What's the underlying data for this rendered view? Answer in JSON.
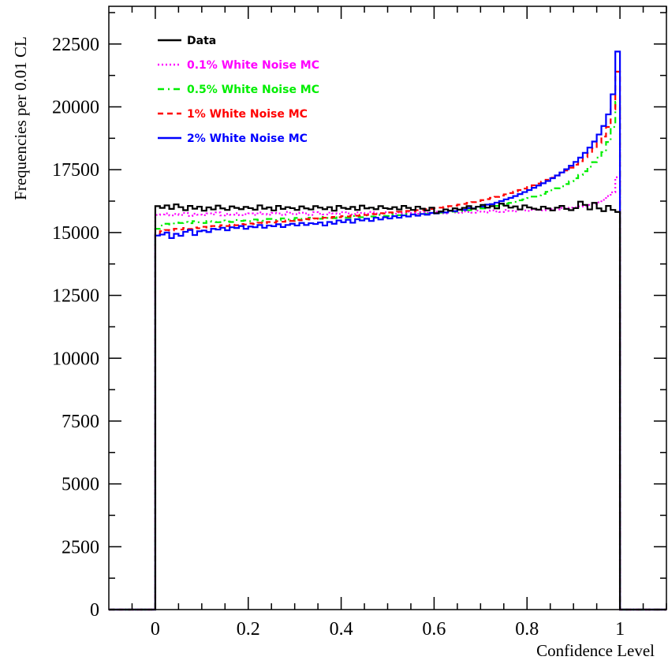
{
  "chart_data": {
    "type": "line",
    "title": "",
    "xlabel": "Confidence Level",
    "ylabel": "Frequencies per 0.01 CL",
    "xlim": [
      -0.1,
      1.1
    ],
    "ylim": [
      0,
      24000
    ],
    "x_ticks": [
      0,
      0.2,
      0.4,
      0.6,
      0.8,
      1
    ],
    "x_tick_labels": [
      "0",
      "0.2",
      "0.4",
      "0.6",
      "0.8",
      "1"
    ],
    "y_ticks": [
      0,
      2500,
      5000,
      7500,
      10000,
      12500,
      15000,
      17500,
      20000,
      22500
    ],
    "y_tick_labels": [
      "0",
      "2500",
      "5000",
      "7500",
      "10000",
      "12500",
      "15000",
      "17500",
      "20000",
      "22500"
    ],
    "bin_width": 0.01,
    "x_range": [
      0,
      1
    ],
    "legend_position": "top-left",
    "grid": false,
    "series": [
      {
        "name": "Data",
        "color": "#000000",
        "style": "solid",
        "values": [
          16050,
          15980,
          16080,
          15940,
          16120,
          16010,
          15890,
          16060,
          15950,
          16030,
          15870,
          16000,
          15920,
          16070,
          15960,
          15900,
          16040,
          15980,
          15930,
          16020,
          15970,
          15910,
          16080,
          15950,
          16000,
          15880,
          16060,
          15940,
          16010,
          15970,
          15900,
          16040,
          15960,
          15920,
          16050,
          15990,
          15930,
          16010,
          15870,
          16060,
          15980,
          15940,
          16020,
          15900,
          16070,
          15960,
          15990,
          15930,
          16050,
          15970,
          15940,
          16010,
          15920,
          16060,
          15980,
          15900,
          16030,
          15950,
          15880,
          15990,
          15770,
          15840,
          15920,
          15870,
          15960,
          15910,
          15980,
          16050,
          15950,
          16030,
          16100,
          15990,
          16050,
          15960,
          16150,
          16070,
          15990,
          16040,
          15920,
          16080,
          16000,
          15950,
          15910,
          16030,
          15960,
          15880,
          15990,
          16060,
          15940,
          15890,
          15970,
          16230,
          16100,
          15920,
          16180,
          15960,
          15850,
          16060,
          15900,
          15820
        ]
      },
      {
        "name": "0.1% White Noise MC",
        "color": "#ff00ff",
        "style": "dotted",
        "values": [
          15700,
          15720,
          15760,
          15680,
          15740,
          15700,
          15780,
          15660,
          15750,
          15710,
          15690,
          15760,
          15720,
          15800,
          15680,
          15740,
          15710,
          15770,
          15690,
          15730,
          15760,
          15700,
          15800,
          15740,
          15710,
          15780,
          15760,
          15700,
          15820,
          15740,
          15730,
          15790,
          15760,
          15700,
          15810,
          15750,
          15720,
          15790,
          15760,
          15740,
          15810,
          15760,
          15720,
          15800,
          15780,
          15750,
          15820,
          15760,
          15730,
          15810,
          15790,
          15750,
          15800,
          15770,
          15830,
          15780,
          15750,
          15820,
          15790,
          15760,
          15830,
          15790,
          15760,
          15850,
          15800,
          15780,
          15840,
          15820,
          15790,
          15870,
          15830,
          15800,
          15880,
          15840,
          15820,
          15900,
          15860,
          15840,
          15910,
          15880,
          15860,
          15920,
          15900,
          15880,
          15950,
          15930,
          15920,
          15980,
          15960,
          15990,
          16000,
          16040,
          16060,
          16100,
          16140,
          16200,
          16300,
          16450,
          16600,
          17200
        ]
      },
      {
        "name": "0.5% White Noise MC",
        "color": "#00ee00",
        "style": "dashdot",
        "values": [
          15150,
          15280,
          15350,
          15320,
          15400,
          15380,
          15420,
          15370,
          15450,
          15410,
          15380,
          15460,
          15430,
          15410,
          15480,
          15440,
          15420,
          15500,
          15460,
          15480,
          15450,
          15520,
          15490,
          15470,
          15540,
          15500,
          15490,
          15560,
          15520,
          15510,
          15580,
          15540,
          15530,
          15590,
          15560,
          15550,
          15620,
          15580,
          15570,
          15640,
          15600,
          15590,
          15660,
          15620,
          15610,
          15680,
          15640,
          15630,
          15700,
          15660,
          15660,
          15720,
          15690,
          15700,
          15740,
          15720,
          15710,
          15770,
          15740,
          15760,
          15800,
          15790,
          15800,
          15850,
          15830,
          15850,
          15900,
          15890,
          15920,
          15960,
          15960,
          16000,
          16050,
          16060,
          16100,
          16150,
          16180,
          16220,
          16280,
          16320,
          16370,
          16430,
          16480,
          16540,
          16620,
          16680,
          16760,
          16840,
          16930,
          17040,
          17160,
          17290,
          17440,
          17620,
          17800,
          17980,
          18200,
          18600,
          19200,
          20200
        ]
      },
      {
        "name": "1% White Noise MC",
        "color": "#ff0000",
        "style": "dashed",
        "values": [
          14950,
          15050,
          15100,
          15080,
          15150,
          15120,
          15180,
          15140,
          15200,
          15170,
          15230,
          15200,
          15260,
          15230,
          15290,
          15260,
          15310,
          15290,
          15340,
          15320,
          15360,
          15340,
          15390,
          15370,
          15420,
          15400,
          15450,
          15430,
          15480,
          15460,
          15510,
          15490,
          15540,
          15520,
          15560,
          15550,
          15590,
          15580,
          15620,
          15610,
          15650,
          15640,
          15680,
          15670,
          15710,
          15700,
          15740,
          15730,
          15770,
          15760,
          15800,
          15790,
          15830,
          15820,
          15860,
          15850,
          15890,
          15890,
          15930,
          15940,
          15970,
          15990,
          16020,
          16050,
          16070,
          16110,
          16140,
          16180,
          16210,
          16250,
          16290,
          16330,
          16380,
          16420,
          16470,
          16520,
          16570,
          16630,
          16690,
          16750,
          16810,
          16880,
          16950,
          17020,
          17100,
          17180,
          17270,
          17370,
          17470,
          17580,
          17700,
          17840,
          18000,
          18160,
          18350,
          18560,
          18820,
          19200,
          19900,
          21400
        ]
      },
      {
        "name": "2% White Noise MC",
        "color": "#0000ff",
        "style": "solid",
        "values": [
          14880,
          14920,
          15000,
          14780,
          14950,
          14870,
          15030,
          15100,
          14900,
          15050,
          15080,
          15020,
          15150,
          15120,
          15190,
          15090,
          15210,
          15180,
          15260,
          15150,
          15240,
          15210,
          15300,
          15190,
          15280,
          15250,
          15330,
          15220,
          15300,
          15350,
          15280,
          15380,
          15300,
          15370,
          15340,
          15400,
          15280,
          15420,
          15350,
          15480,
          15410,
          15510,
          15390,
          15530,
          15480,
          15550,
          15460,
          15590,
          15520,
          15610,
          15560,
          15650,
          15590,
          15680,
          15640,
          15720,
          15670,
          15740,
          15710,
          15780,
          15760,
          15820,
          15800,
          15860,
          15850,
          15910,
          15900,
          15970,
          15960,
          16030,
          16030,
          16110,
          16130,
          16190,
          16250,
          16320,
          16380,
          16450,
          16530,
          16610,
          16690,
          16780,
          16870,
          16960,
          17050,
          17160,
          17270,
          17390,
          17520,
          17660,
          17810,
          17980,
          18170,
          18380,
          18620,
          18900,
          19240,
          19700,
          20500,
          22200
        ]
      }
    ]
  }
}
